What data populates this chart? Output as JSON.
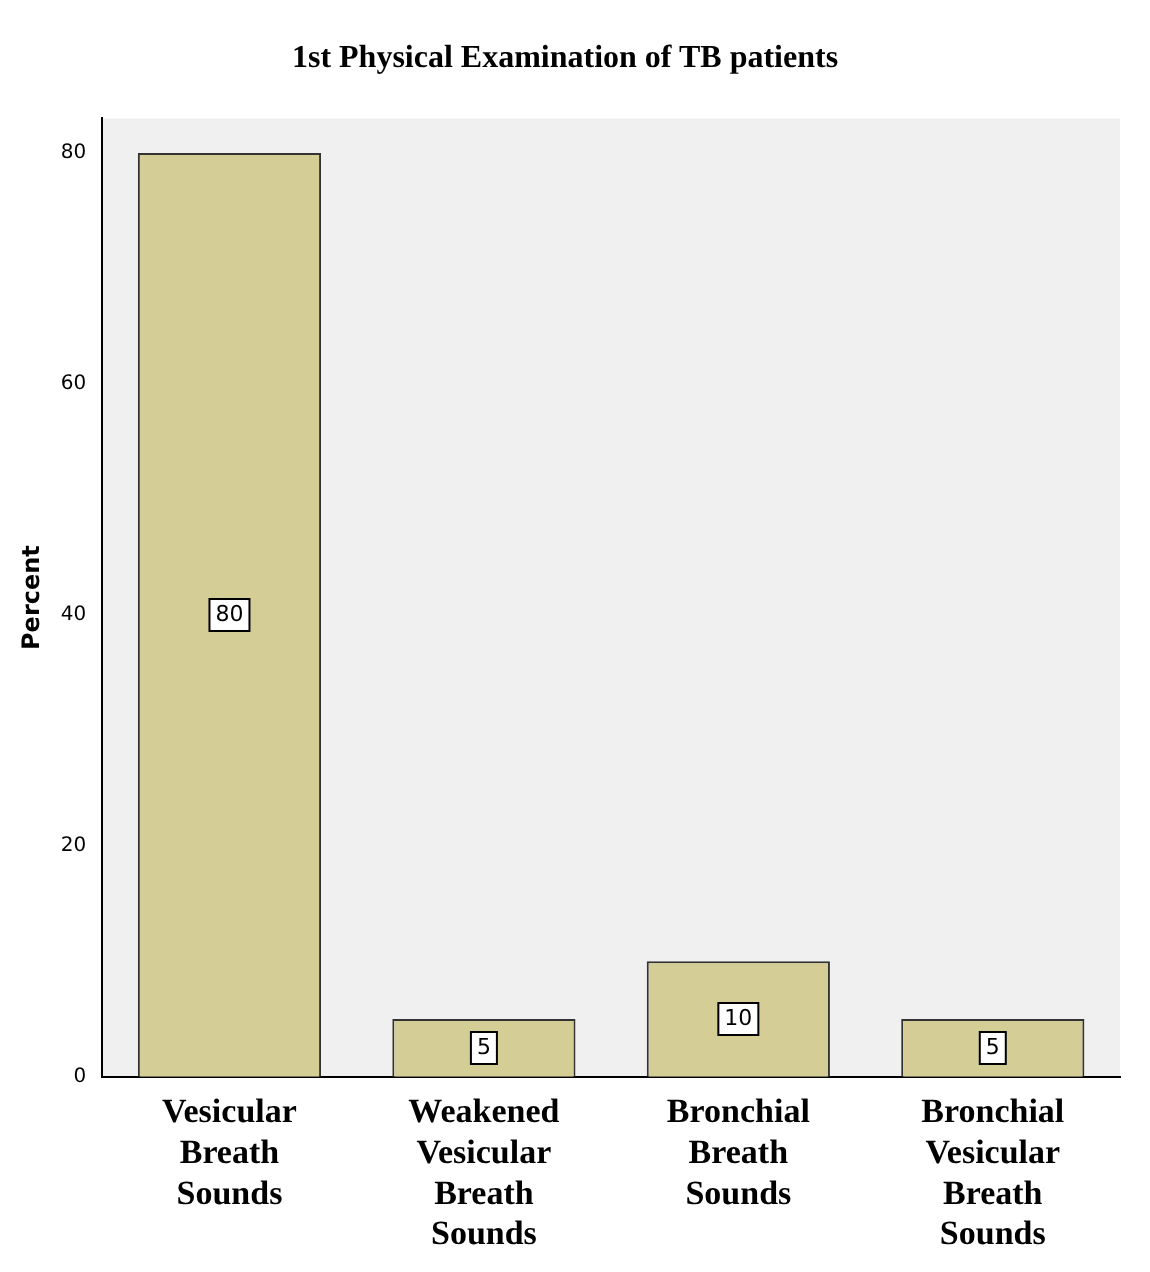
{
  "chart_data": {
    "type": "bar",
    "title": "1st Physical Examination of TB patients",
    "ylabel": "Percent",
    "categories": [
      "Vesicular Breath Sounds",
      "Weakened Vesicular Breath Sounds",
      "Bronchial Breath Sounds",
      "Bronchial Vesicular Breath Sounds"
    ],
    "values": [
      80,
      5,
      10,
      5
    ],
    "color": "#d4cd96",
    "ylim": [
      0,
      83
    ],
    "yticks": [
      0,
      20,
      40,
      60,
      80
    ],
    "grid": false,
    "legend": false,
    "data_labels": true
  }
}
